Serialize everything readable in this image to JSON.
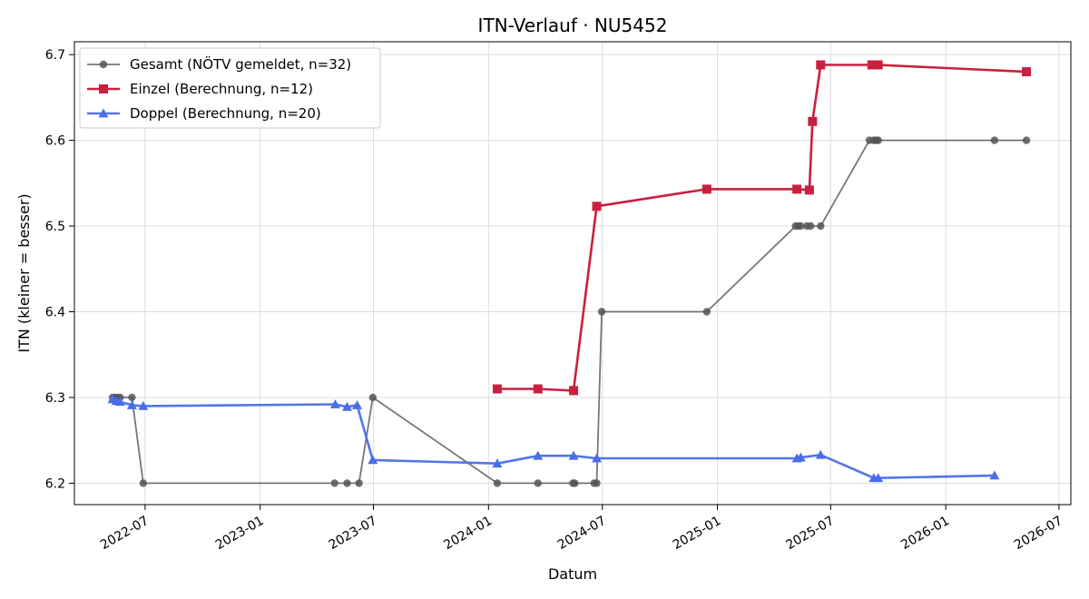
{
  "chart_data": {
    "type": "line",
    "title": "ITN-Verlauf · NU5452",
    "xlabel": "Datum",
    "ylabel": "ITN  (kleiner = besser)",
    "x_type": "date",
    "xlim": [
      "2022-03-10",
      "2026-07-20"
    ],
    "ylim": [
      6.175,
      6.715
    ],
    "x_ticks": [
      "2022-07-01",
      "2023-01-01",
      "2023-07-01",
      "2024-01-01",
      "2024-07-01",
      "2025-01-01",
      "2025-07-01",
      "2026-01-01",
      "2026-07-01"
    ],
    "x_tick_labels": [
      "2022-07",
      "2023-01",
      "2023-07",
      "2024-01",
      "2024-07",
      "2025-01",
      "2025-07",
      "2026-01",
      "2026-07"
    ],
    "y_ticks": [
      6.2,
      6.3,
      6.4,
      6.5,
      6.6,
      6.7
    ],
    "y_tick_labels": [
      "6.2",
      "6.3",
      "6.4",
      "6.5",
      "6.6",
      "6.7"
    ],
    "grid": true,
    "legend_position": "top-left",
    "series": [
      {
        "name": "Gesamt (NÖTV gemeldet, n=32)",
        "color": "#555555",
        "marker": "circle",
        "points": [
          {
            "x": "2022-05-10",
            "y": 6.3
          },
          {
            "x": "2022-05-14",
            "y": 6.3
          },
          {
            "x": "2022-05-18",
            "y": 6.3
          },
          {
            "x": "2022-05-22",
            "y": 6.3
          },
          {
            "x": "2022-06-10",
            "y": 6.3
          },
          {
            "x": "2022-06-28",
            "y": 6.2
          },
          {
            "x": "2023-04-30",
            "y": 6.2
          },
          {
            "x": "2023-05-20",
            "y": 6.2
          },
          {
            "x": "2023-06-08",
            "y": 6.2
          },
          {
            "x": "2023-06-30",
            "y": 6.3
          },
          {
            "x": "2024-01-15",
            "y": 6.2
          },
          {
            "x": "2024-03-20",
            "y": 6.2
          },
          {
            "x": "2024-05-15",
            "y": 6.2
          },
          {
            "x": "2024-05-18",
            "y": 6.2
          },
          {
            "x": "2024-06-18",
            "y": 6.2
          },
          {
            "x": "2024-06-22",
            "y": 6.2
          },
          {
            "x": "2024-06-30",
            "y": 6.4
          },
          {
            "x": "2024-12-15",
            "y": 6.4
          },
          {
            "x": "2025-05-06",
            "y": 6.5
          },
          {
            "x": "2025-05-10",
            "y": 6.5
          },
          {
            "x": "2025-05-14",
            "y": 6.5
          },
          {
            "x": "2025-05-24",
            "y": 6.5
          },
          {
            "x": "2025-05-30",
            "y": 6.5
          },
          {
            "x": "2025-06-15",
            "y": 6.5
          },
          {
            "x": "2025-09-01",
            "y": 6.6
          },
          {
            "x": "2025-09-08",
            "y": 6.6
          },
          {
            "x": "2025-09-12",
            "y": 6.6
          },
          {
            "x": "2025-09-15",
            "y": 6.6
          },
          {
            "x": "2026-03-20",
            "y": 6.6
          },
          {
            "x": "2026-05-10",
            "y": 6.6
          }
        ]
      },
      {
        "name": "Einzel (Berechnung, n=12)",
        "color": "#c8203e",
        "marker": "square",
        "points": [
          {
            "x": "2024-01-15",
            "y": 6.31
          },
          {
            "x": "2024-03-20",
            "y": 6.31
          },
          {
            "x": "2024-05-16",
            "y": 6.308
          },
          {
            "x": "2024-06-22",
            "y": 6.523
          },
          {
            "x": "2024-12-15",
            "y": 6.543
          },
          {
            "x": "2025-05-08",
            "y": 6.543
          },
          {
            "x": "2025-05-28",
            "y": 6.542
          },
          {
            "x": "2025-06-02",
            "y": 6.622
          },
          {
            "x": "2025-06-15",
            "y": 6.688
          },
          {
            "x": "2025-09-05",
            "y": 6.688
          },
          {
            "x": "2025-09-15",
            "y": 6.688
          },
          {
            "x": "2026-05-10",
            "y": 6.68
          }
        ]
      },
      {
        "name": "Doppel (Berechnung, n=20)",
        "color": "#4a6ee8",
        "marker": "triangle",
        "points": [
          {
            "x": "2022-05-10",
            "y": 6.298
          },
          {
            "x": "2022-05-16",
            "y": 6.296
          },
          {
            "x": "2022-05-22",
            "y": 6.295
          },
          {
            "x": "2022-06-10",
            "y": 6.291
          },
          {
            "x": "2022-06-28",
            "y": 6.29
          },
          {
            "x": "2023-05-01",
            "y": 6.292
          },
          {
            "x": "2023-05-20",
            "y": 6.289
          },
          {
            "x": "2023-06-05",
            "y": 6.291
          },
          {
            "x": "2023-06-30",
            "y": 6.227
          },
          {
            "x": "2024-01-15",
            "y": 6.223
          },
          {
            "x": "2024-03-20",
            "y": 6.232
          },
          {
            "x": "2024-05-16",
            "y": 6.232
          },
          {
            "x": "2024-06-22",
            "y": 6.229
          },
          {
            "x": "2025-05-08",
            "y": 6.229
          },
          {
            "x": "2025-05-14",
            "y": 6.23
          },
          {
            "x": "2025-06-15",
            "y": 6.233
          },
          {
            "x": "2025-09-08",
            "y": 6.206
          },
          {
            "x": "2025-09-15",
            "y": 6.206
          },
          {
            "x": "2026-03-20",
            "y": 6.209
          }
        ]
      }
    ]
  }
}
